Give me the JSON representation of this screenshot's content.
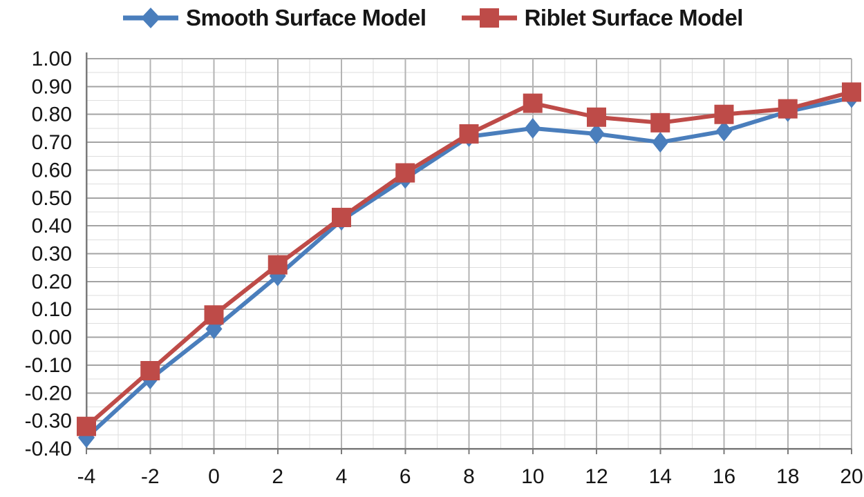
{
  "chart_data": {
    "type": "line",
    "title": "",
    "xlabel": "",
    "ylabel": "",
    "x": [
      -4,
      -2,
      0,
      2,
      4,
      6,
      8,
      10,
      12,
      14,
      16,
      18,
      20
    ],
    "series": [
      {
        "name": "Smooth Surface Model",
        "color": "#4a7ebc",
        "marker": "diamond",
        "values": [
          -0.36,
          -0.15,
          0.03,
          0.22,
          0.42,
          0.57,
          0.72,
          0.75,
          0.73,
          0.7,
          0.74,
          0.81,
          0.86
        ]
      },
      {
        "name": "Riblet Surface Model",
        "color": "#be4b48",
        "marker": "square",
        "values": [
          -0.32,
          -0.12,
          0.08,
          0.26,
          0.43,
          0.59,
          0.73,
          0.84,
          0.79,
          0.77,
          0.8,
          0.82,
          0.88
        ]
      }
    ],
    "xlim": [
      -4,
      20
    ],
    "ylim": [
      -0.4,
      1.0
    ],
    "x_tick_step": 2,
    "x_minor_step": 1,
    "y_tick_step": 0.1,
    "y_minor_step": 0.05,
    "x_tick_labels": [
      "-4",
      "-2",
      "0",
      "2",
      "4",
      "6",
      "8",
      "10",
      "12",
      "14",
      "16",
      "18",
      "20"
    ],
    "y_tick_labels": [
      "1.00",
      "0.90",
      "0.80",
      "0.70",
      "0.60",
      "0.50",
      "0.40",
      "0.30",
      "0.20",
      "0.10",
      "0.00",
      "-0.10",
      "-0.20",
      "-0.30",
      "-0.40"
    ],
    "grid": true,
    "legend_position": "top",
    "colors": {
      "axis": "#7a7a7a",
      "major_grid": "#a3a3a3",
      "minor_grid": "#dedede",
      "tick_text": "#141414"
    }
  }
}
